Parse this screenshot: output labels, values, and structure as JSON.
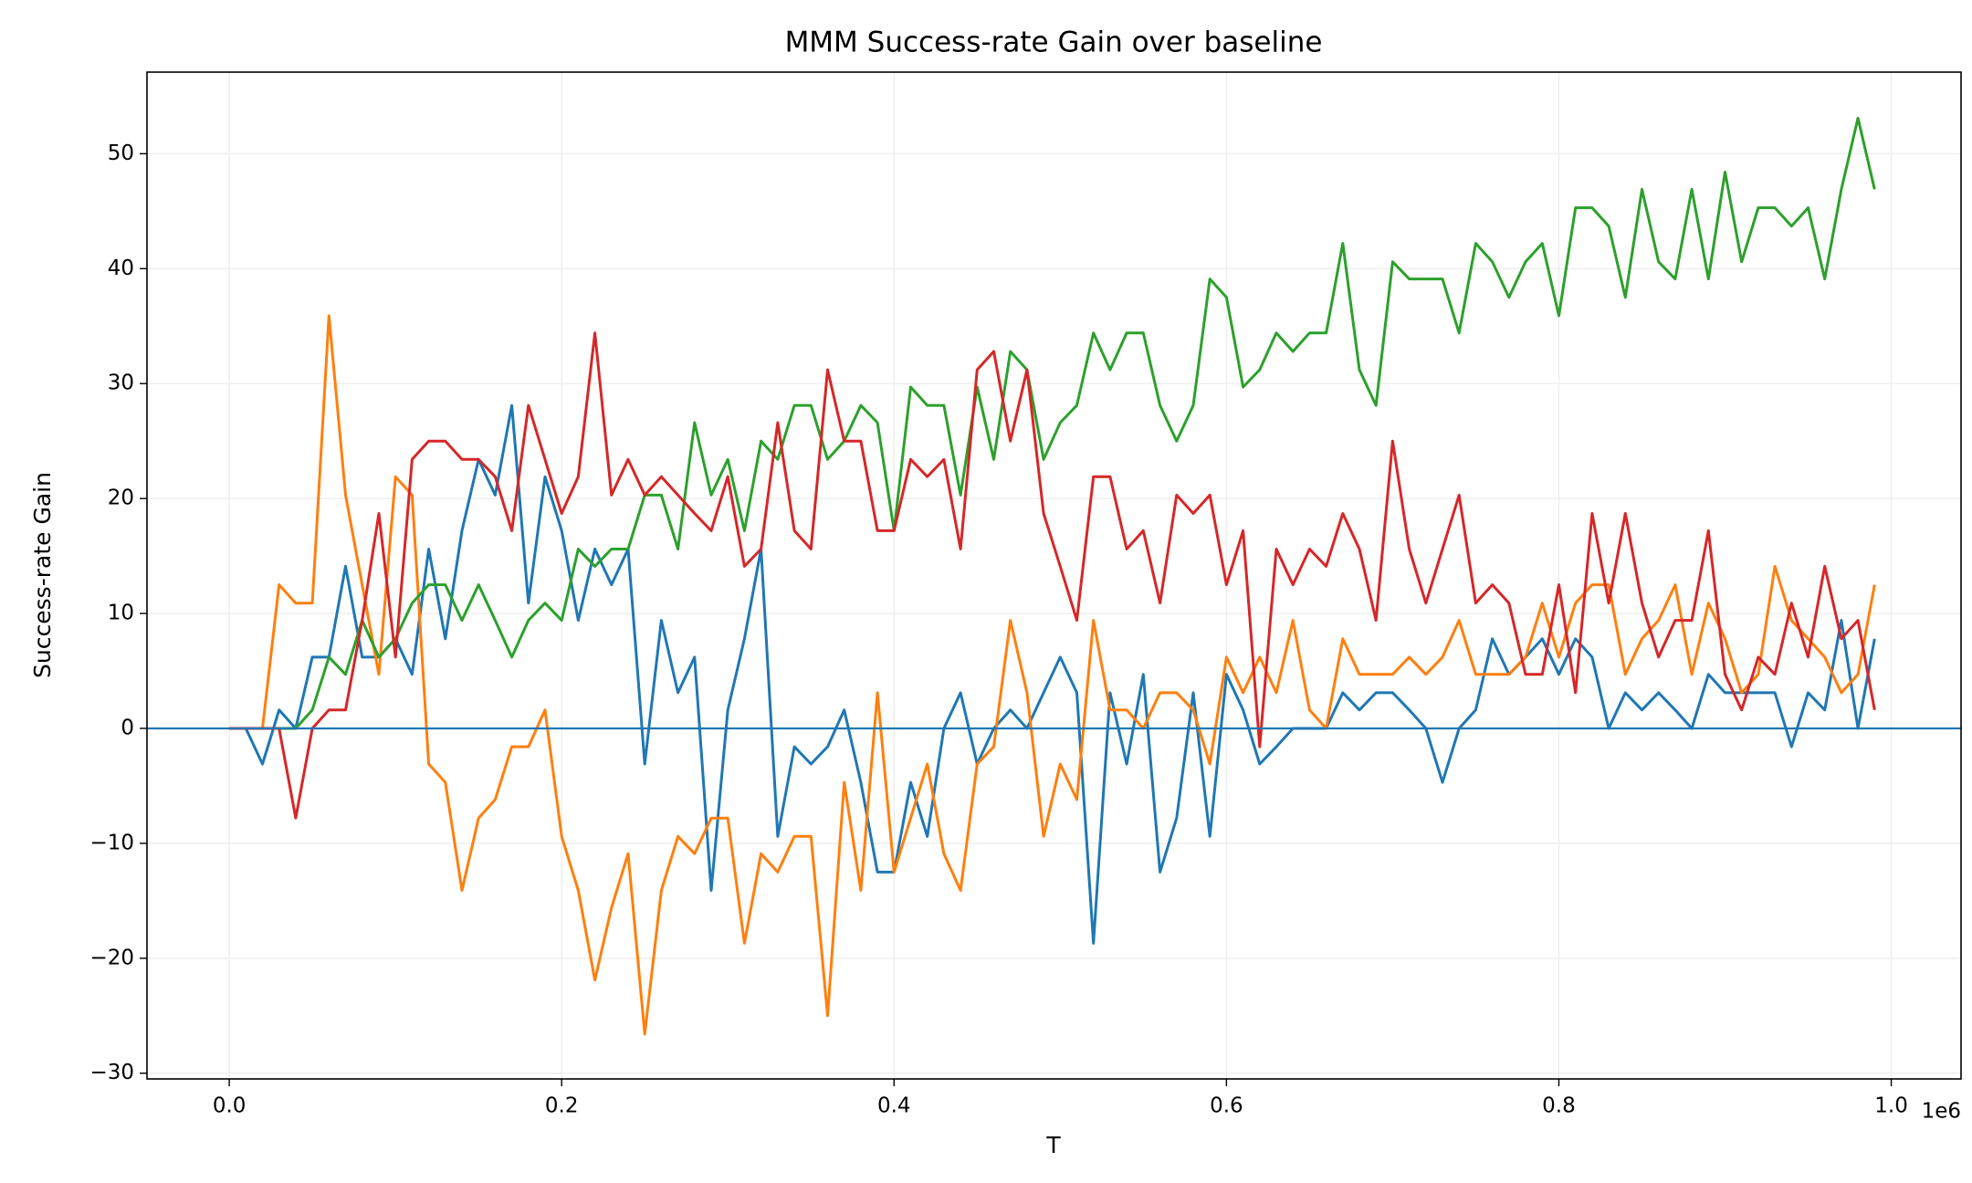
{
  "chart_data": {
    "type": "line",
    "title": "MMM Success-rate Gain over baseline",
    "xlabel": "T",
    "ylabel": "Success-rate Gain",
    "x_offset_label": "1e6",
    "x": [
      0,
      10000,
      20000,
      30000,
      40000,
      50000,
      60000,
      70000,
      80000,
      90000,
      100000,
      110000,
      120000,
      130000,
      140000,
      150000,
      160000,
      170000,
      180000,
      190000,
      200000,
      210000,
      220000,
      230000,
      240000,
      250000,
      260000,
      270000,
      280000,
      290000,
      300000,
      310000,
      320000,
      330000,
      340000,
      350000,
      360000,
      370000,
      380000,
      390000,
      400000,
      410000,
      420000,
      430000,
      440000,
      450000,
      460000,
      470000,
      480000,
      490000,
      500000,
      510000,
      520000,
      530000,
      540000,
      550000,
      560000,
      570000,
      580000,
      590000,
      600000,
      610000,
      620000,
      630000,
      640000,
      650000,
      660000,
      670000,
      680000,
      690000,
      700000,
      710000,
      720000,
      730000,
      740000,
      750000,
      760000,
      770000,
      780000,
      790000,
      800000,
      810000,
      820000,
      830000,
      840000,
      850000,
      860000,
      870000,
      880000,
      890000,
      900000,
      910000,
      920000,
      930000,
      940000,
      950000,
      960000,
      970000,
      980000,
      990000
    ],
    "series": [
      {
        "color": "#1f77b4",
        "values": [
          0,
          0,
          -3.1,
          1.6,
          0,
          6.2,
          6.2,
          14.1,
          6.2,
          6.2,
          7.8,
          4.7,
          15.6,
          7.8,
          17.2,
          23.4,
          20.3,
          28.1,
          10.9,
          21.9,
          17.2,
          9.4,
          15.6,
          12.5,
          15.6,
          -3.1,
          9.4,
          3.1,
          6.2,
          -14.1,
          1.6,
          7.8,
          15.6,
          -9.4,
          -1.6,
          -3.1,
          -1.6,
          1.6,
          -4.7,
          -12.5,
          -12.5,
          -4.7,
          -9.4,
          0,
          3.1,
          -3.1,
          0,
          1.6,
          0,
          3.1,
          6.2,
          3.1,
          -18.7,
          3.1,
          -3.1,
          4.7,
          -12.5,
          -7.8,
          3.1,
          -9.4,
          4.7,
          1.6,
          -3.1,
          -1.6,
          0,
          0,
          0,
          3.1,
          1.6,
          3.1,
          3.1,
          1.6,
          0,
          -4.7,
          0,
          1.6,
          7.8,
          4.7,
          6.2,
          7.8,
          4.7,
          7.8,
          6.2,
          0,
          3.1,
          1.6,
          3.1,
          1.6,
          0,
          4.7,
          3.1,
          3.1,
          3.1,
          3.1,
          -1.6,
          3.1,
          1.6,
          9.4,
          0,
          7.8
        ]
      },
      {
        "color": "#ff7f0e",
        "values": [
          0,
          0,
          0,
          12.5,
          10.9,
          10.9,
          35.9,
          20.3,
          12.5,
          4.7,
          21.9,
          20.3,
          -3.1,
          -4.7,
          -14.1,
          -7.8,
          -6.2,
          -1.6,
          -1.6,
          1.6,
          -9.4,
          -14.1,
          -21.9,
          -15.6,
          -10.9,
          -26.6,
          -14.1,
          -9.4,
          -10.9,
          -7.8,
          -7.8,
          -18.7,
          -10.9,
          -12.5,
          -9.4,
          -9.4,
          -25,
          -4.7,
          -14.1,
          3.1,
          -12.5,
          -7.8,
          -3.1,
          -10.9,
          -14.1,
          -3.1,
          -1.6,
          9.4,
          3.1,
          -9.4,
          -3.1,
          -6.2,
          9.4,
          1.6,
          1.6,
          0,
          3.1,
          3.1,
          1.6,
          -3.1,
          6.2,
          3.1,
          6.2,
          3.1,
          9.4,
          1.6,
          0,
          7.8,
          4.7,
          4.7,
          4.7,
          6.2,
          4.7,
          6.2,
          9.4,
          4.7,
          4.7,
          4.7,
          6.2,
          10.9,
          6.2,
          10.9,
          12.5,
          12.5,
          4.7,
          7.8,
          9.4,
          12.5,
          4.7,
          10.9,
          7.8,
          3.1,
          4.7,
          14.1,
          9.4,
          7.8,
          6.2,
          3.1,
          4.7,
          12.5
        ]
      },
      {
        "color": "#2ca02c",
        "values": [
          0,
          0,
          0,
          0,
          0,
          1.6,
          6.2,
          4.7,
          9.4,
          6.2,
          7.8,
          10.9,
          12.5,
          12.5,
          9.4,
          12.5,
          9.4,
          6.2,
          9.4,
          10.9,
          9.4,
          15.6,
          14.1,
          15.6,
          15.6,
          20.3,
          20.3,
          15.6,
          26.6,
          20.3,
          23.4,
          17.2,
          25,
          23.4,
          28.1,
          28.1,
          23.4,
          25,
          28.1,
          26.6,
          17.2,
          29.7,
          28.1,
          28.1,
          20.3,
          29.7,
          23.4,
          32.8,
          31.2,
          23.4,
          26.6,
          28.1,
          34.4,
          31.2,
          34.4,
          34.4,
          28.1,
          25,
          28.1,
          39.1,
          37.5,
          29.7,
          31.2,
          34.4,
          32.8,
          34.4,
          34.4,
          42.2,
          31.2,
          28.1,
          40.6,
          39.1,
          39.1,
          39.1,
          34.4,
          42.2,
          40.6,
          37.5,
          40.6,
          42.2,
          35.9,
          45.3,
          45.3,
          43.7,
          37.5,
          46.9,
          40.6,
          39.1,
          46.9,
          39.1,
          48.4,
          40.6,
          45.3,
          45.3,
          43.7,
          45.3,
          39.1,
          46.9,
          53.1,
          46.9
        ]
      },
      {
        "color": "#d62728",
        "values": [
          0,
          0,
          0,
          0,
          -7.8,
          0,
          1.6,
          1.6,
          9.4,
          18.7,
          6.2,
          23.4,
          25,
          25,
          23.4,
          23.4,
          21.9,
          17.2,
          28.1,
          23.4,
          18.7,
          21.9,
          34.4,
          20.3,
          23.4,
          20.3,
          21.9,
          20.3,
          18.7,
          17.2,
          21.9,
          14.1,
          15.6,
          26.6,
          17.2,
          15.6,
          31.2,
          25,
          25,
          17.2,
          17.2,
          23.4,
          21.9,
          23.4,
          15.6,
          31.2,
          32.8,
          25,
          31.2,
          18.7,
          14.1,
          9.4,
          21.9,
          21.9,
          15.6,
          17.2,
          10.9,
          20.3,
          18.7,
          20.3,
          12.5,
          17.2,
          -1.6,
          15.6,
          12.5,
          15.6,
          14.1,
          18.7,
          15.6,
          9.4,
          25,
          15.6,
          10.9,
          15.6,
          20.3,
          10.9,
          12.5,
          10.9,
          4.7,
          4.7,
          12.5,
          3.1,
          18.7,
          10.9,
          18.7,
          10.9,
          6.2,
          9.4,
          9.4,
          17.2,
          4.7,
          1.6,
          6.2,
          4.7,
          10.9,
          6.2,
          14.1,
          7.8,
          9.4,
          1.6
        ]
      }
    ],
    "reference_line": {
      "value": 0,
      "color": "#1f77b4"
    },
    "xlim": [
      -49500,
      1042000
    ],
    "xticks": [
      {
        "value": 0,
        "label": "0.0"
      },
      {
        "value": 200000,
        "label": "0.2"
      },
      {
        "value": 400000,
        "label": "0.4"
      },
      {
        "value": 600000,
        "label": "0.6"
      },
      {
        "value": 800000,
        "label": "0.8"
      },
      {
        "value": 1000000,
        "label": "1.0"
      }
    ],
    "ylim": [
      -30.5,
      57.1
    ],
    "yticks": [
      {
        "value": -30,
        "label": "−30"
      },
      {
        "value": -20,
        "label": "−20"
      },
      {
        "value": -10,
        "label": "−10"
      },
      0,
      10,
      20,
      30,
      40,
      50
    ],
    "grid": true
  }
}
